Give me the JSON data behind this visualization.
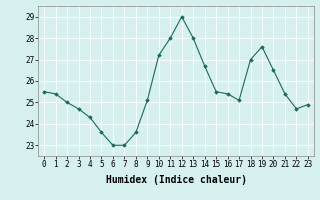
{
  "x": [
    0,
    1,
    2,
    3,
    4,
    5,
    6,
    7,
    8,
    9,
    10,
    11,
    12,
    13,
    14,
    15,
    16,
    17,
    18,
    19,
    20,
    21,
    22,
    23
  ],
  "y": [
    25.5,
    25.4,
    25.0,
    24.7,
    24.3,
    23.6,
    23.0,
    23.0,
    23.6,
    25.1,
    27.2,
    28.0,
    29.0,
    28.0,
    26.7,
    25.5,
    25.4,
    25.1,
    27.0,
    27.6,
    26.5,
    25.4,
    24.7,
    24.9
  ],
  "xlabel": "Humidex (Indice chaleur)",
  "ylim": [
    22.5,
    29.5
  ],
  "yticks": [
    23,
    24,
    25,
    26,
    27,
    28,
    29
  ],
  "xticks": [
    0,
    1,
    2,
    3,
    4,
    5,
    6,
    7,
    8,
    9,
    10,
    11,
    12,
    13,
    14,
    15,
    16,
    17,
    18,
    19,
    20,
    21,
    22,
    23
  ],
  "line_color": "#1a6b5a",
  "marker": "D",
  "marker_size": 1.8,
  "bg_color": "#d6f0f0",
  "grid_color": "#ffffff",
  "tick_fontsize": 5.5,
  "xlabel_fontsize": 7,
  "spine_color": "#888888"
}
